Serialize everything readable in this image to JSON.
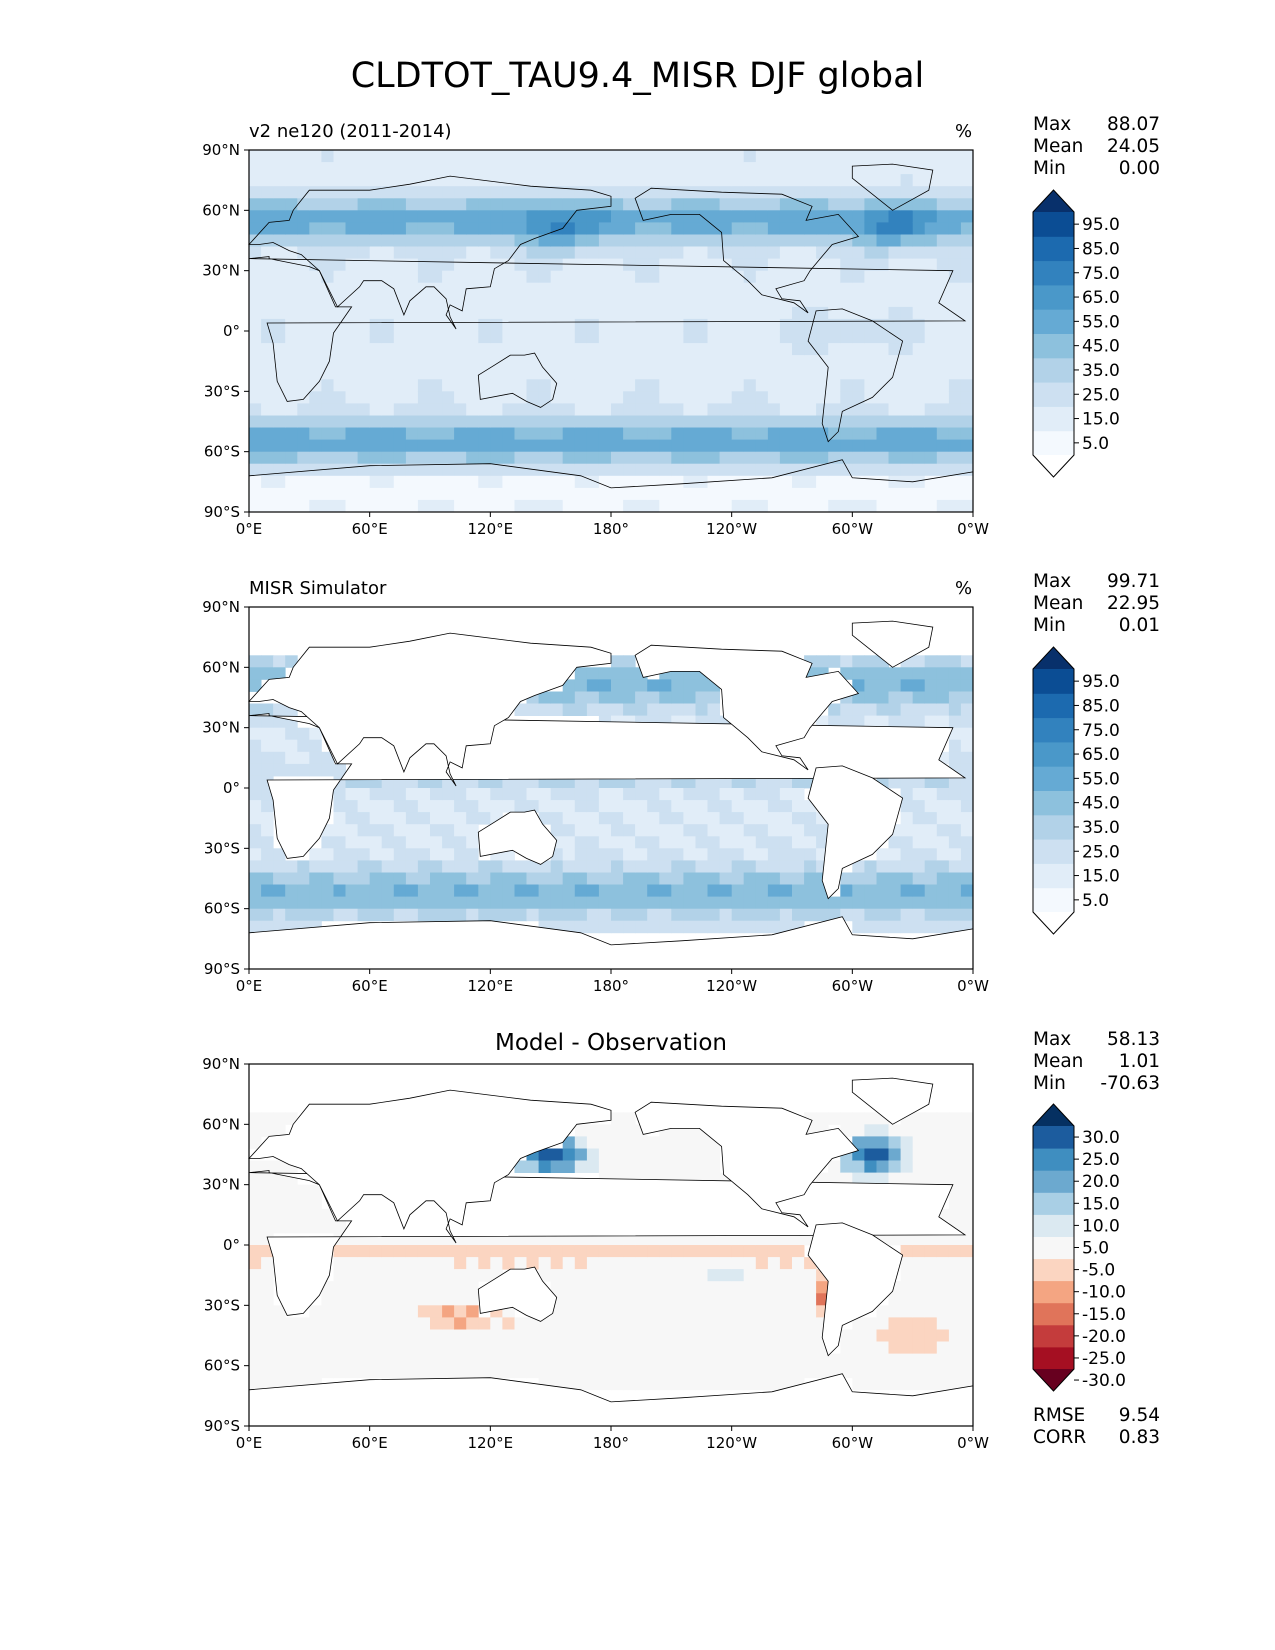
{
  "title": "CLDTOT_TAU9.4_MISR DJF global",
  "colors": {
    "blues": [
      "#f7fbff",
      "#deebf7",
      "#c6dbef",
      "#9ecae1",
      "#6baed6",
      "#4292c6",
      "#2171b5",
      "#08519c",
      "#08306b"
    ],
    "blues_levels": [
      "#ffffff",
      "#f4f9fe",
      "#e1edf8",
      "#cde0f1",
      "#b2d2e8",
      "#8dc1dd",
      "#65aad4",
      "#4a98c9",
      "#3282be",
      "#1c6aaf",
      "#0b4d94",
      "#08306b"
    ],
    "diff_levels": [
      "#67001f",
      "#a50f22",
      "#c43c3c",
      "#e0745a",
      "#f4a582",
      "#fbd5c1",
      "#f7f7f7",
      "#dbe9f1",
      "#a9cfe5",
      "#6ca9cf",
      "#3f8ec0",
      "#1c5c9e",
      "#053061"
    ],
    "coast": "#000000"
  },
  "chart_data": [
    {
      "type": "heatmap",
      "name": "model",
      "left_title": "v2 ne120 (2011-2014)",
      "right_title": "%",
      "xticks": [
        "0°E",
        "60°E",
        "120°E",
        "180°",
        "120°W",
        "60°W",
        "0°W"
      ],
      "yticks": [
        "90°N",
        "60°N",
        "30°N",
        "0°",
        "30°S",
        "60°S",
        "90°S"
      ],
      "xlim": [
        0,
        360
      ],
      "ylim": [
        -90,
        90
      ],
      "stats": {
        "labels": [
          "Max",
          "Mean",
          "Min"
        ],
        "values": [
          "88.07",
          "24.05",
          "0.00"
        ]
      },
      "colorbar": {
        "extend": "both",
        "levels": [
          "5.0",
          "15.0",
          "25.0",
          "35.0",
          "45.0",
          "55.0",
          "65.0",
          "75.0",
          "85.0",
          "95.0"
        ]
      }
    },
    {
      "type": "heatmap",
      "name": "observation",
      "left_title": "MISR Simulator",
      "right_title": "%",
      "xticks": [
        "0°E",
        "60°E",
        "120°E",
        "180°",
        "120°W",
        "60°W",
        "0°W"
      ],
      "yticks": [
        "90°N",
        "60°N",
        "30°N",
        "0°",
        "30°S",
        "60°S",
        "90°S"
      ],
      "xlim": [
        0,
        360
      ],
      "ylim": [
        -90,
        90
      ],
      "stats": {
        "labels": [
          "Max",
          "Mean",
          "Min"
        ],
        "values": [
          "99.71",
          "22.95",
          "0.01"
        ]
      },
      "colorbar": {
        "extend": "both",
        "levels": [
          "5.0",
          "15.0",
          "25.0",
          "35.0",
          "45.0",
          "55.0",
          "65.0",
          "75.0",
          "85.0",
          "95.0"
        ]
      }
    },
    {
      "type": "heatmap",
      "name": "difference",
      "center_title": "Model - Observation",
      "xticks": [
        "0°E",
        "60°E",
        "120°E",
        "180°",
        "120°W",
        "60°W",
        "0°W"
      ],
      "yticks": [
        "90°N",
        "60°N",
        "30°N",
        "0°",
        "30°S",
        "60°S",
        "90°S"
      ],
      "xlim": [
        0,
        360
      ],
      "ylim": [
        -90,
        90
      ],
      "stats": {
        "labels": [
          "Max",
          "Mean",
          "Min"
        ],
        "values": [
          "58.13",
          "1.01",
          "-70.63"
        ]
      },
      "colorbar": {
        "extend": "both",
        "levels": [
          "-30.0",
          "-25.0",
          "-20.0",
          "-15.0",
          "-10.0",
          "-5.0",
          "5.0",
          "10.0",
          "15.0",
          "20.0",
          "25.0",
          "30.0"
        ]
      },
      "metrics": {
        "labels": [
          "RMSE",
          "CORR"
        ],
        "values": [
          "9.54",
          "0.83"
        ]
      }
    }
  ]
}
